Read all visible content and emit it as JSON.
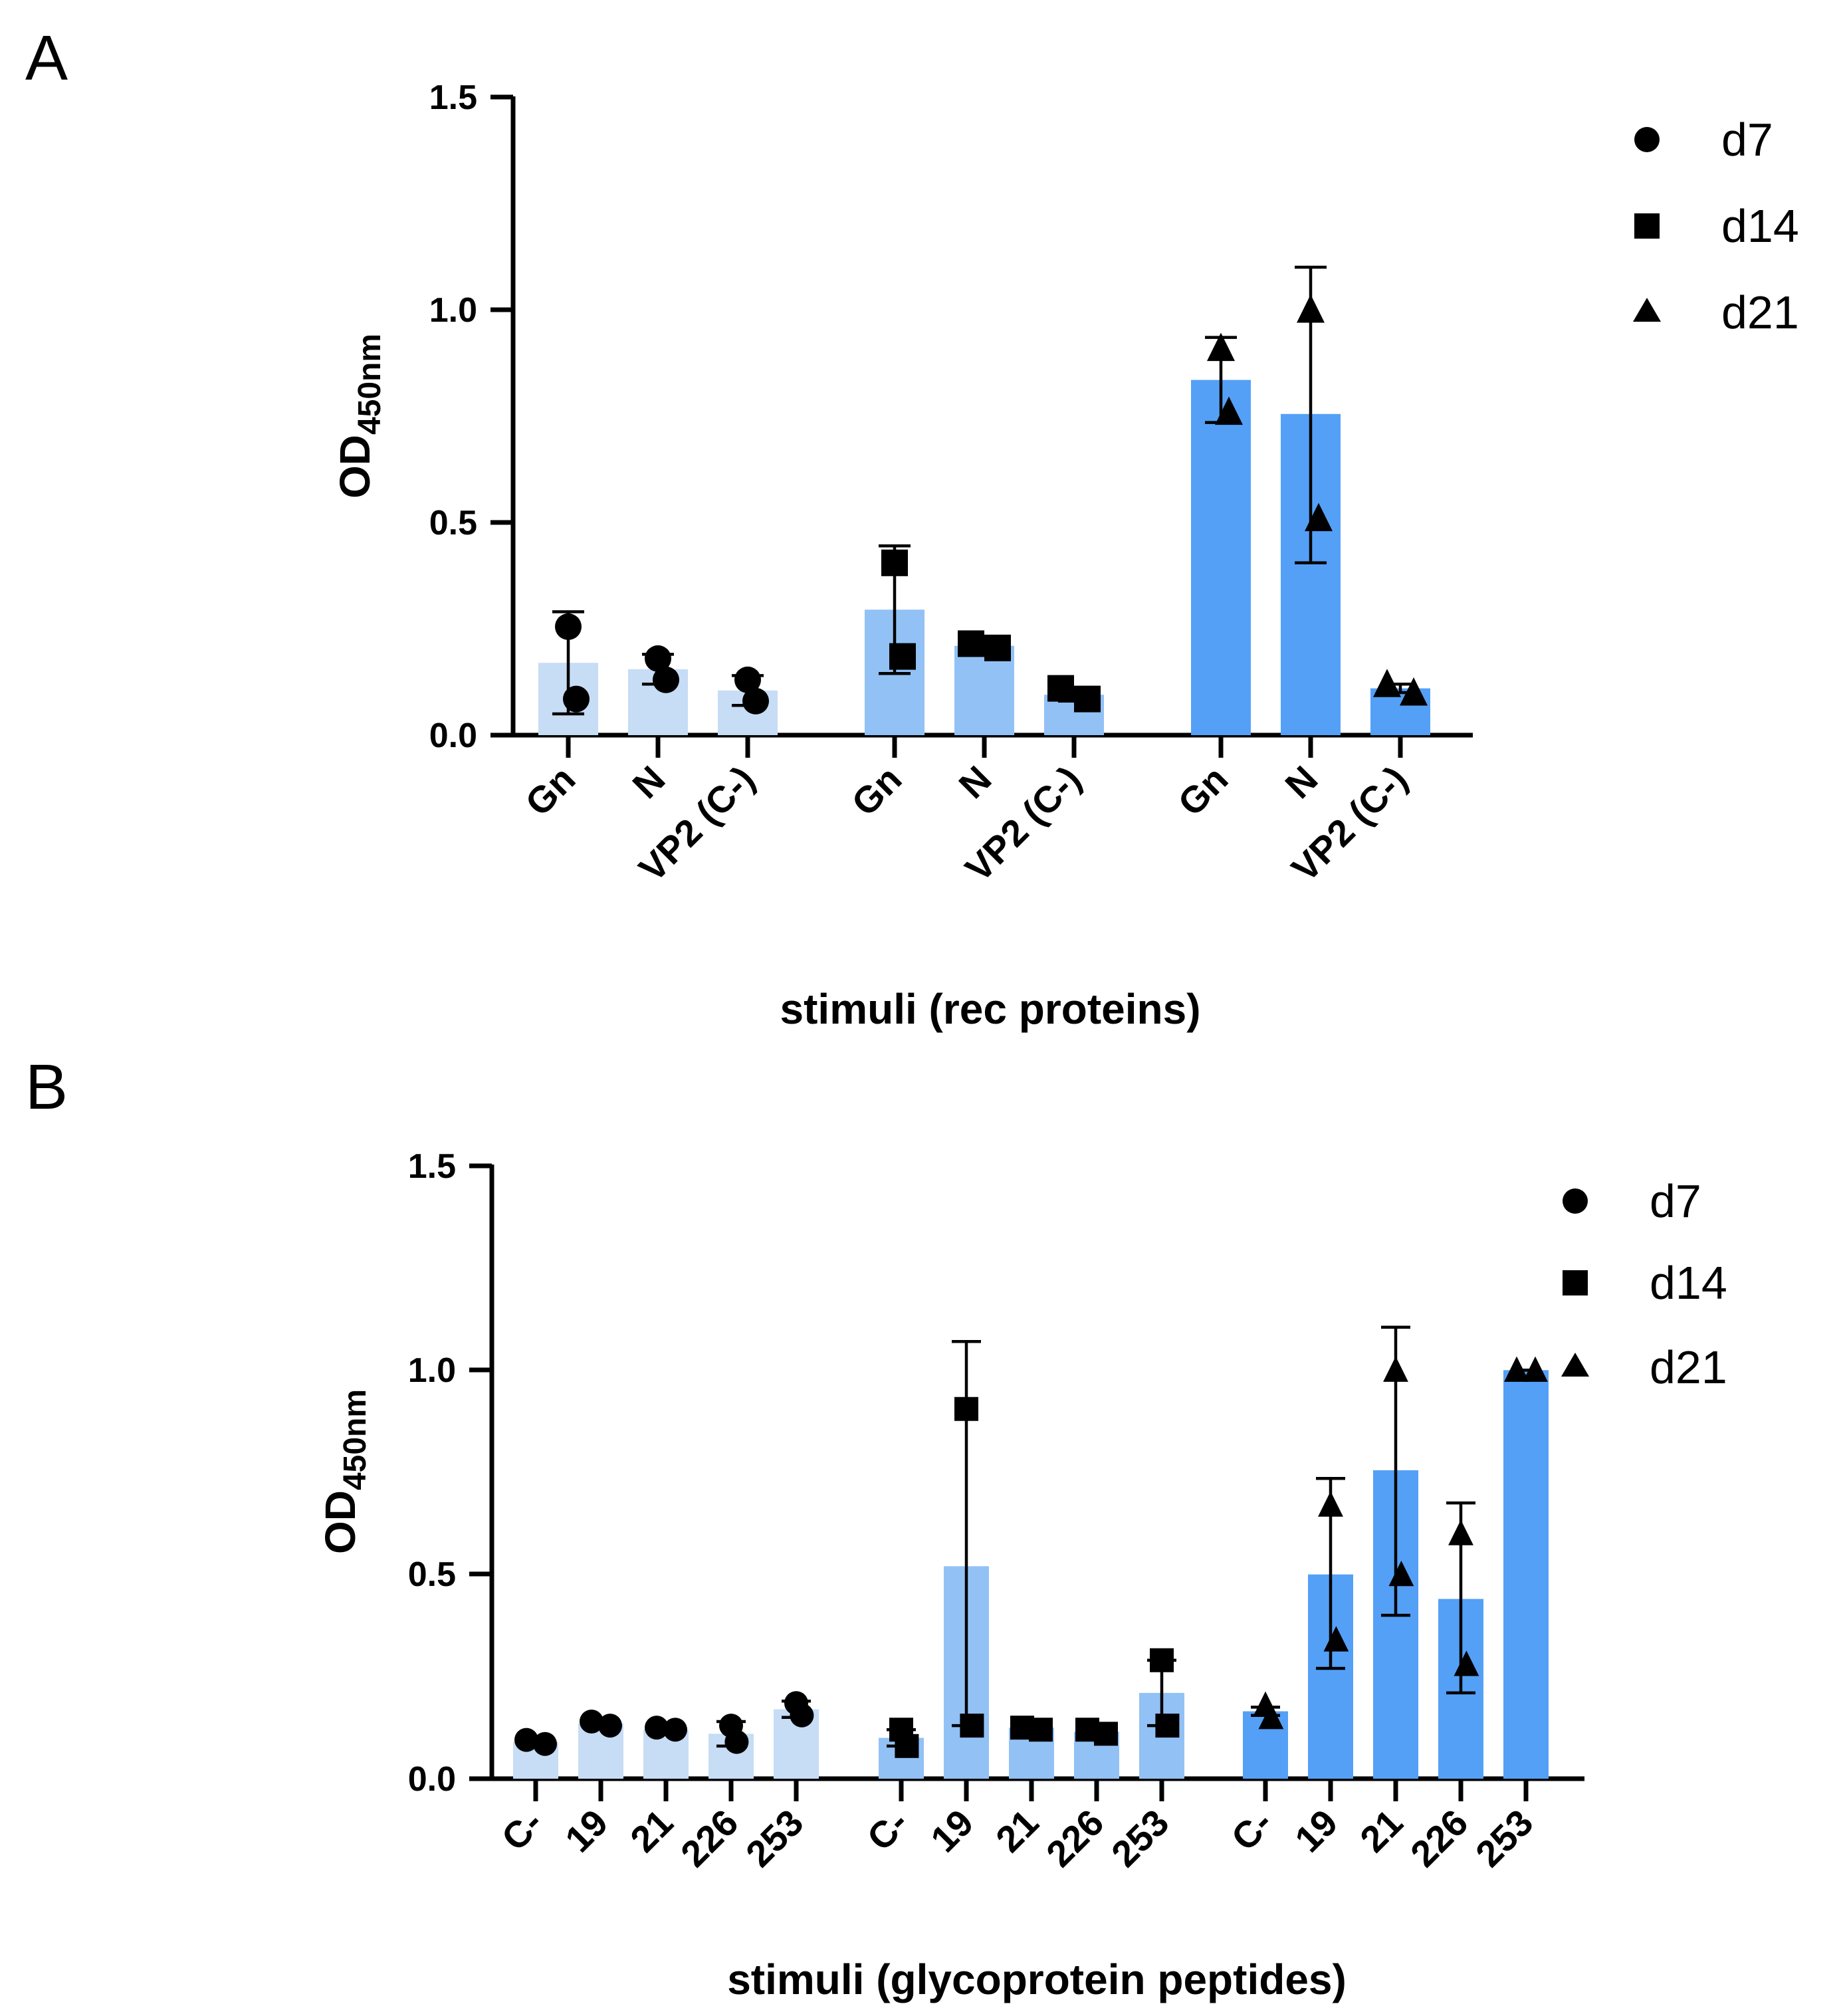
{
  "chart_data": [
    {
      "panel": "A",
      "type": "bar",
      "ylabel_main": "OD",
      "ylabel_sub": "450nm",
      "xlabel": "stimuli (rec proteins)",
      "ylim": [
        0,
        1.5
      ],
      "yticks": [
        "0.0",
        "0.5",
        "1.0",
        "1.5"
      ],
      "legend_position": "top-right",
      "legend": [
        {
          "name": "d7",
          "marker": "circle"
        },
        {
          "name": "d14",
          "marker": "square"
        },
        {
          "name": "d21",
          "marker": "triangle"
        }
      ],
      "groups": [
        {
          "name": "d7",
          "color": "#c7dcf5",
          "marker": "circle",
          "categories": [
            "Gn",
            "N",
            "VP2 (C-)"
          ],
          "values": [
            0.17,
            0.155,
            0.105
          ],
          "error_high": [
            0.29,
            0.19,
            0.14
          ],
          "error_low": [
            0.05,
            0.12,
            0.07
          ],
          "points": [
            [
              0.255,
              0.085
            ],
            [
              0.18,
              0.13
            ],
            [
              0.13,
              0.08
            ]
          ]
        },
        {
          "name": "d14",
          "color": "#92c1f5",
          "marker": "square",
          "categories": [
            "Gn",
            "N",
            "VP2 (C-)"
          ],
          "values": [
            0.295,
            0.21,
            0.095
          ],
          "error_high": [
            0.445,
            0.22,
            0.11
          ],
          "error_low": [
            0.145,
            0.2,
            0.08
          ],
          "points": [
            [
              0.405,
              0.185
            ],
            [
              0.215,
              0.205
            ],
            [
              0.11,
              0.085
            ]
          ]
        },
        {
          "name": "d21",
          "color": "#54a0f7",
          "marker": "triangle",
          "categories": [
            "Gn",
            "N",
            "VP2 (C-)"
          ],
          "values": [
            0.835,
            0.755,
            0.11
          ],
          "error_high": [
            0.935,
            1.1,
            0.12
          ],
          "error_low": [
            0.735,
            0.405,
            0.1
          ],
          "points": [
            [
              0.91,
              0.76
            ],
            [
              1.0,
              0.51
            ],
            [
              0.12,
              0.1
            ]
          ]
        }
      ]
    },
    {
      "panel": "B",
      "type": "bar",
      "ylabel_main": "OD",
      "ylabel_sub": "450nm",
      "xlabel": "stimuli (glycoprotein peptides)",
      "ylim": [
        0,
        1.5
      ],
      "yticks": [
        "0.0",
        "0.5",
        "1.0",
        "1.5"
      ],
      "legend_position": "top-right",
      "legend": [
        {
          "name": "d7",
          "marker": "circle"
        },
        {
          "name": "d14",
          "marker": "square"
        },
        {
          "name": "d21",
          "marker": "triangle"
        }
      ],
      "groups": [
        {
          "name": "d7",
          "color": "#c7dcf5",
          "marker": "circle",
          "categories": [
            "C-",
            "19",
            "21",
            "226",
            "253"
          ],
          "values": [
            0.09,
            0.135,
            0.12,
            0.11,
            0.17
          ],
          "error_high": [
            0.1,
            0.145,
            0.13,
            0.14,
            0.19
          ],
          "error_low": [
            0.08,
            0.125,
            0.115,
            0.08,
            0.15
          ],
          "points": [
            [
              0.095,
              0.085
            ],
            [
              0.14,
              0.13
            ],
            [
              0.125,
              0.12
            ],
            [
              0.13,
              0.09
            ],
            [
              0.185,
              0.155
            ]
          ]
        },
        {
          "name": "d14",
          "color": "#92c1f5",
          "marker": "square",
          "categories": [
            "C-",
            "19",
            "21",
            "226",
            "253"
          ],
          "values": [
            0.1,
            0.52,
            0.125,
            0.115,
            0.21
          ],
          "error_high": [
            0.12,
            1.07,
            0.13,
            0.125,
            0.29
          ],
          "error_low": [
            0.08,
            0.13,
            0.12,
            0.105,
            0.13
          ],
          "points": [
            [
              0.12,
              0.08
            ],
            [
              0.905,
              0.13
            ],
            [
              0.125,
              0.12
            ],
            [
              0.12,
              0.11
            ],
            [
              0.29,
              0.13
            ]
          ]
        },
        {
          "name": "d21",
          "color": "#54a0f7",
          "marker": "triangle",
          "categories": [
            "C-",
            "19",
            "21",
            "226",
            "253"
          ],
          "values": [
            0.165,
            0.5,
            0.755,
            0.44,
            1.0
          ],
          "error_high": [
            0.175,
            0.735,
            1.105,
            0.675,
            1.0
          ],
          "error_low": [
            0.155,
            0.27,
            0.4,
            0.21,
            1.0
          ],
          "points": [
            [
              0.18,
              0.15
            ],
            [
              0.67,
              0.34
            ],
            [
              1.0,
              0.5
            ],
            [
              0.6,
              0.28
            ],
            [
              1.0,
              1.0
            ]
          ]
        }
      ]
    }
  ]
}
